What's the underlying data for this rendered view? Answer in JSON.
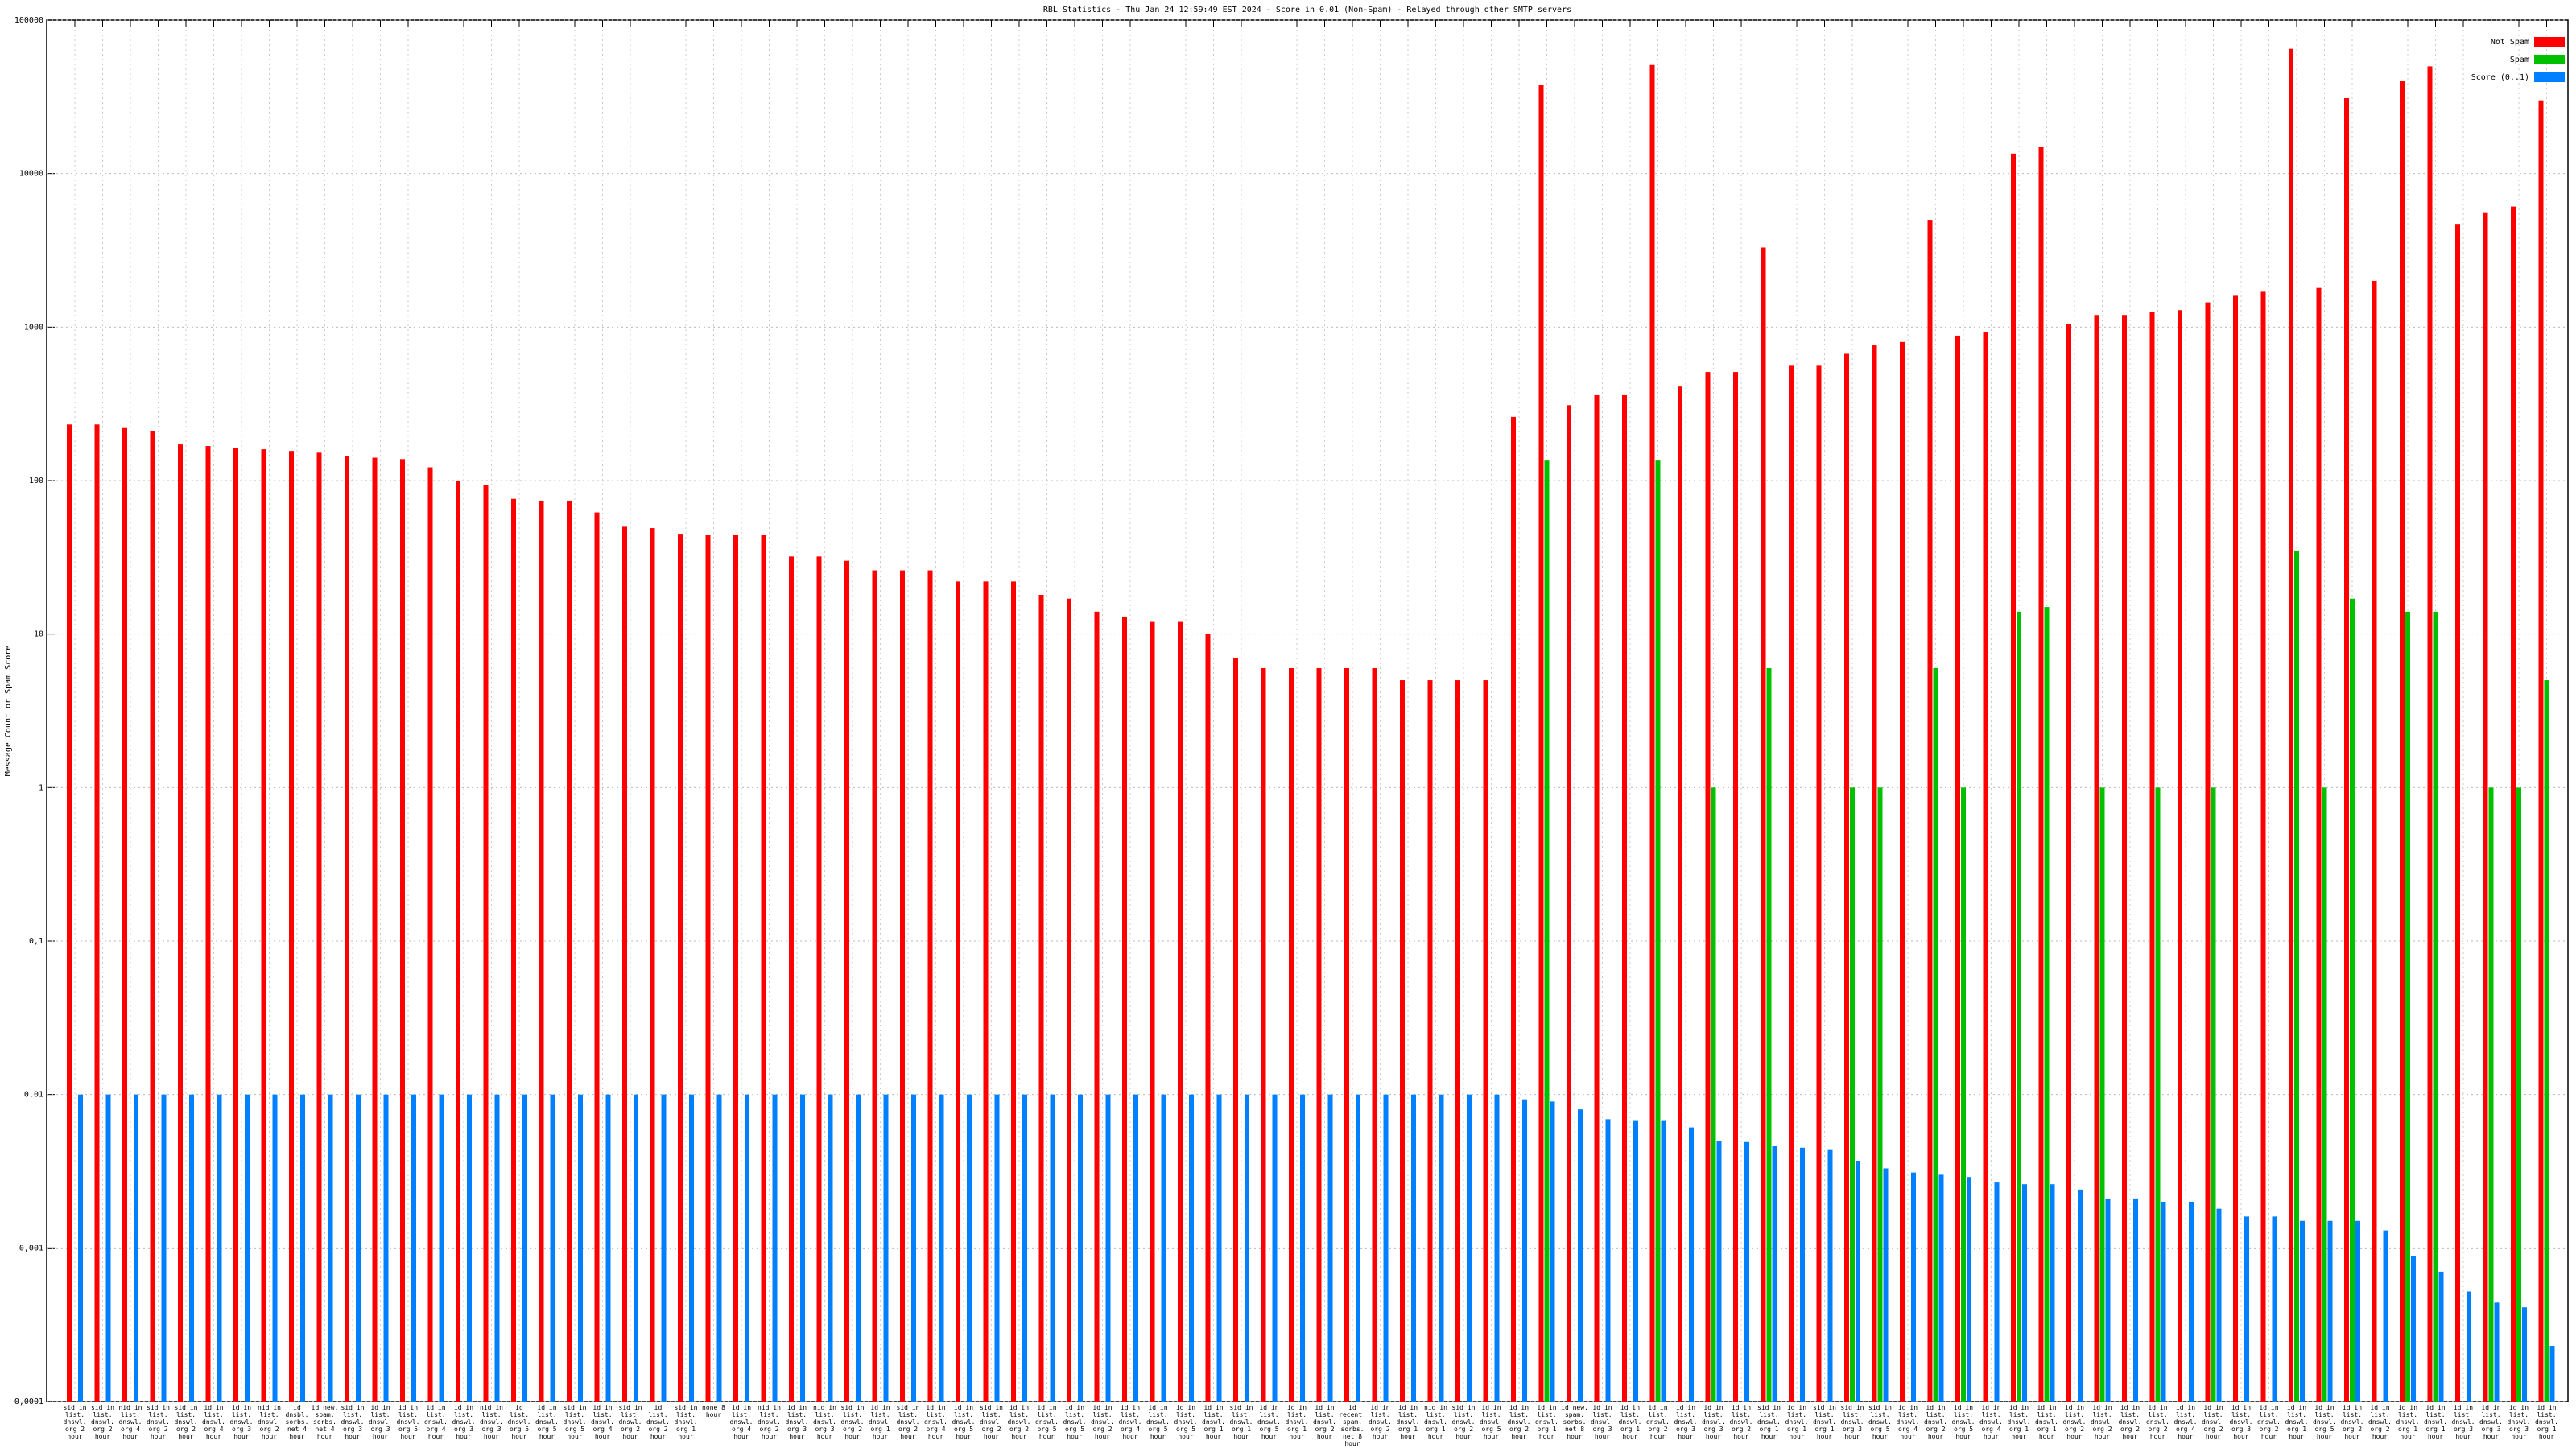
{
  "chart_data": {
    "type": "bar",
    "title": "RBL Statistics - Thu Jan 24 12:59:49 EST 2024 - Score in 0.01 (Non-Spam) - Relayed through other SMTP servers",
    "y_label": "Message Count or Spam Score",
    "log_scale": true,
    "grid": true,
    "legend": "upper right",
    "ylim": [
      0.0001,
      100000
    ],
    "yticks": [
      {
        "value": 0.0001,
        "label": "0,0001"
      },
      {
        "value": 0.001,
        "label": "0,001"
      },
      {
        "value": 0.01,
        "label": "0,01"
      },
      {
        "value": 0.1,
        "label": "0,1"
      },
      1,
      10,
      100,
      1000,
      10000,
      100000
    ],
    "categories": [
      "sid in list. dnswl. org 2 hour",
      "sid in list. dnswl. org 2 hour",
      "nid in list. dnswl. org 4 hour",
      "sid in list. dnswl. org 2 hour",
      "sid in list. dnswl. org 2 hour",
      "id in list. dnswl. org 4 hour",
      "id in list. dnswl. org 3 hour",
      "nid in list. dnswl. org 2 hour",
      "id dnsbl. sorbs. net 4 hour",
      "id new. spam. sorbs. net 4 hour",
      "sid in list. dnswl. org 3 hour",
      "id in list. dnswl. org 3 hour",
      "id in list. dnswl. org 5 hour",
      "id in list. dnswl. org 4 hour",
      "id in list. dnswl. org 3 hour",
      "nid in list. dnswl. org 3 hour",
      "id list. dnswl. org 5 hour",
      "id in list. dnswl. org 5 hour",
      "sid in list. dnswl. org 5 hour",
      "id in list. dnswl. org 4 hour",
      "sid in list. dnswl. org 2 hour",
      "id list. dnswl. org 2 hour",
      "sid in list. dnswl. org 1 hour",
      "none 8 hour",
      "id in list. dnswl. org 4 hour",
      "nid in list. dnswl. org 2 hour",
      "id in list. dnswl. org 3 hour",
      "nid in list. dnswl. org 3 hour",
      "sid in list. dnswl. org 2 hour",
      "id in list. dnswl. org 1 hour",
      "sid in list. dnswl. org 2 hour",
      "id in list. dnswl. org 4 hour",
      "id in list. dnswl. org 5 hour",
      "sid in list. dnswl. org 2 hour",
      "id in list. dnswl. org 2 hour",
      "id in list. dnswl. org 5 hour",
      "id in list. dnswl. org 5 hour",
      "id in list. dnswl. org 2 hour",
      "id in list. dnswl. org 4 hour",
      "id in list. dnswl. org 5 hour",
      "id in list. dnswl. org 5 hour",
      "id in list. dnswl. org 1 hour",
      "sid in list. dnswl. org 1 hour",
      "id in list. dnswl. org 5 hour",
      "id in list. dnswl. org 1 hour",
      "id in list. dnswl. org 2 hour",
      "id recent. spam. sorbs. net 8 hour",
      "id in list. dnswl. org 2 hour",
      "id in list. dnswl. org 1 hour",
      "nid in list. dnswl. org 1 hour",
      "sid in list. dnswl. org 2 hour",
      "id in list. dnswl. org 5 hour",
      "id in list. dnswl. org 2 hour",
      "id in list. dnswl. org 1 hour",
      "id new. spam. sorbs. net 8 hour",
      "id in list. dnswl. org 3 hour",
      "id in list. dnswl. org 1 hour",
      "id in list. dnswl. org 2 hour",
      "id in list. dnswl. org 3 hour",
      "id in list. dnswl. org 3 hour",
      "id in list. dnswl. org 2 hour",
      "sid in list. dnswl. org 1 hour",
      "id in list. dnswl. org 1 hour",
      "sid in list. dnswl. org 1 hour",
      "sid in list. dnswl. org 3 hour",
      "sid in list. dnswl. org 5 hour",
      "id in list. dnswl. org 4 hour",
      "id in list. dnswl. org 2 hour",
      "id in list. dnswl. org 5 hour",
      "id in list. dnswl. org 4 hour",
      "id in list. dnswl. org 1 hour",
      "id in list. dnswl. org 1 hour",
      "id in list. dnswl. org 2 hour",
      "id in list. dnswl. org 2 hour",
      "id in list. dnswl. org 2 hour",
      "id in list. dnswl. org 2 hour",
      "id in list. dnswl. org 4 hour",
      "id in list. dnswl. org 2 hour",
      "id in list. dnswl. org 3 hour",
      "id in list. dnswl. org 2 hour",
      "id in list. dnswl. org 1 hour",
      "id in list. dnswl. org 5 hour",
      "id in list. dnswl. org 2 hour",
      "id in list. dnswl. org 2 hour",
      "id in list. dnswl. org 1 hour",
      "id in list. dnswl. org 1 hour",
      "id in list. dnswl. org 3 hour",
      "id in list. dnswl. org 3 hour",
      "id in list. dnswl. org 3 hour",
      "id in list. dnswl. org 1 hour"
    ],
    "series": [
      {
        "name": "Not Spam",
        "color": "#ff0000",
        "values": [
          232,
          232,
          220,
          210,
          172,
          168,
          164,
          160,
          156,
          152,
          145,
          141,
          138,
          122,
          100,
          93,
          76,
          74,
          74,
          62,
          50,
          49,
          45,
          44,
          44,
          44,
          32,
          32,
          30,
          26,
          26,
          26,
          22,
          22,
          22,
          18,
          17,
          14,
          13,
          12,
          12,
          10,
          7,
          6,
          6,
          6,
          6,
          6,
          5,
          5,
          5,
          5,
          260,
          38000,
          310,
          360,
          360,
          51000,
          410,
          510,
          510,
          3300,
          560,
          560,
          670,
          760,
          800,
          5000,
          880,
          930,
          13500,
          15000,
          1050,
          1200,
          1200,
          1250,
          1290,
          1450,
          1600,
          1700,
          65000,
          1800,
          31000,
          2000,
          40000,
          50000,
          4700,
          5600,
          6100,
          30000
        ]
      },
      {
        "name": "Spam",
        "color": "#00c000",
        "values": [
          null,
          null,
          null,
          null,
          null,
          null,
          null,
          null,
          null,
          null,
          null,
          null,
          null,
          null,
          null,
          null,
          null,
          null,
          null,
          null,
          null,
          null,
          null,
          null,
          null,
          null,
          null,
          null,
          null,
          null,
          null,
          null,
          null,
          null,
          null,
          null,
          null,
          null,
          null,
          null,
          null,
          null,
          null,
          null,
          null,
          null,
          null,
          null,
          null,
          null,
          null,
          null,
          null,
          135,
          null,
          null,
          null,
          135,
          null,
          1,
          null,
          6,
          null,
          null,
          1,
          1,
          null,
          6,
          1,
          null,
          14,
          15,
          null,
          1,
          null,
          1,
          null,
          1,
          null,
          null,
          35,
          1,
          17,
          null,
          14,
          14,
          null,
          1,
          1,
          5
        ]
      },
      {
        "name": "Score (0..1)",
        "color": "#0080ff",
        "values": [
          0.01,
          0.01,
          0.01,
          0.01,
          0.01,
          0.01,
          0.01,
          0.01,
          0.01,
          0.01,
          0.01,
          0.01,
          0.01,
          0.01,
          0.01,
          0.01,
          0.01,
          0.01,
          0.01,
          0.01,
          0.01,
          0.01,
          0.01,
          0.01,
          0.01,
          0.01,
          0.01,
          0.01,
          0.01,
          0.01,
          0.01,
          0.01,
          0.01,
          0.01,
          0.01,
          0.01,
          0.01,
          0.01,
          0.01,
          0.01,
          0.01,
          0.01,
          0.01,
          0.01,
          0.01,
          0.01,
          0.01,
          0.01,
          0.01,
          0.01,
          0.01,
          0.01,
          0.0093,
          0.009,
          0.008,
          0.0069,
          0.0068,
          0.0068,
          0.0061,
          0.005,
          0.0049,
          0.0046,
          0.0045,
          0.0044,
          0.0037,
          0.0033,
          0.0031,
          0.003,
          0.0029,
          0.0027,
          0.0026,
          0.0026,
          0.0024,
          0.0021,
          0.0021,
          0.002,
          0.002,
          0.0018,
          0.0016,
          0.0016,
          0.0015,
          0.0015,
          0.0015,
          0.0013,
          0.00089,
          0.0007,
          0.00052,
          0.00044,
          0.00041,
          0.00023
        ]
      }
    ]
  }
}
